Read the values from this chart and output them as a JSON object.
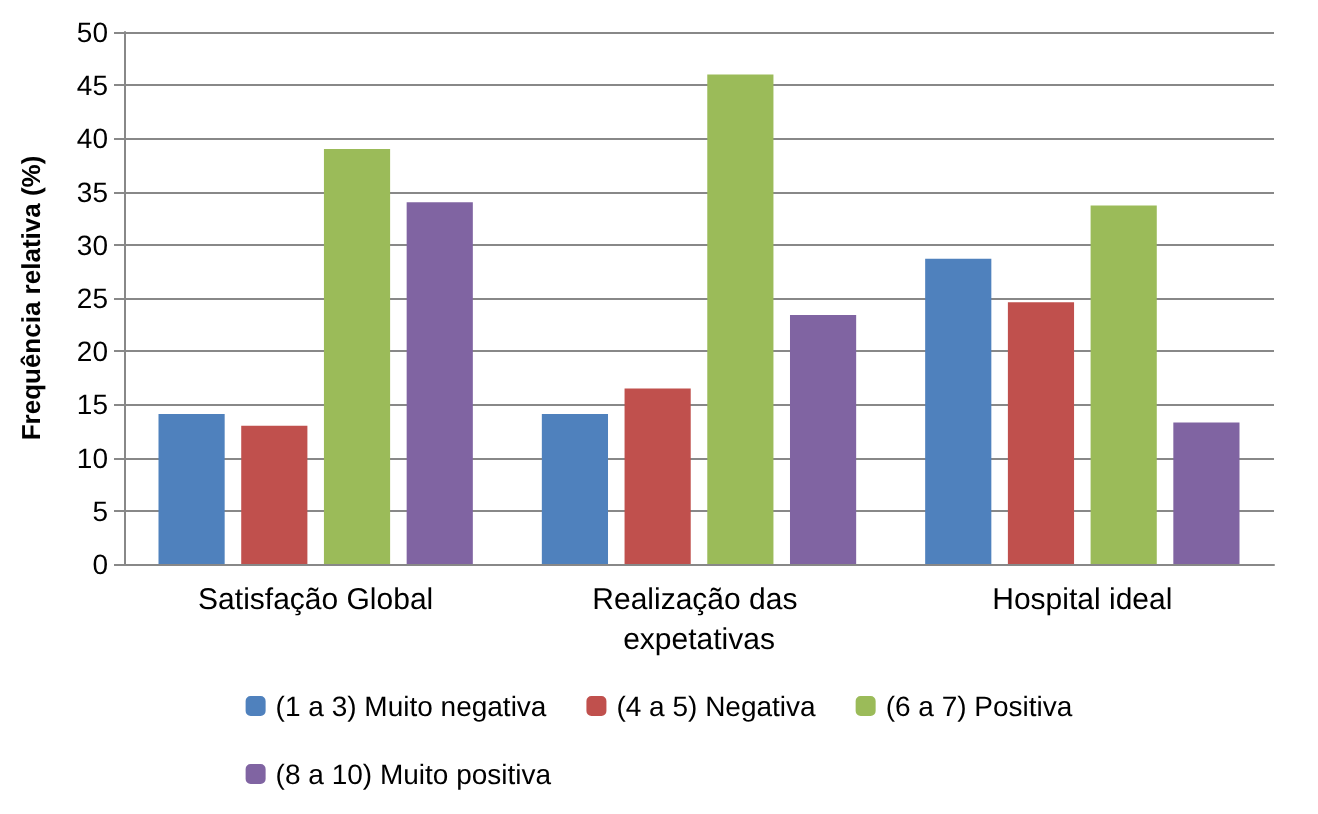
{
  "chart_data": {
    "type": "bar",
    "ylabel": "Frequência relativa (%)",
    "categories": [
      "Satisfação Global",
      "Realização das expetativas",
      "Hospital ideal"
    ],
    "series": [
      {
        "name": "(1 a 3) Muito negativa",
        "color": "#4f81bd",
        "values": [
          14.1,
          14.1,
          28.7
        ]
      },
      {
        "name": "(4 a 5) Negativa",
        "color": "#c0504d",
        "values": [
          13.0,
          16.5,
          24.6
        ]
      },
      {
        "name": "(6 a 7) Positiva",
        "color": "#9bbb59",
        "values": [
          39.0,
          46.0,
          33.7
        ]
      },
      {
        "name": "(8 a 10) Muito positiva",
        "color": "#8064a2",
        "values": [
          34.0,
          23.4,
          13.3
        ]
      }
    ],
    "ylim": [
      0,
      50
    ],
    "yticks": [
      0,
      5,
      10,
      15,
      20,
      25,
      30,
      35,
      40,
      45,
      50
    ],
    "grid": "y",
    "legend": "bottom"
  }
}
